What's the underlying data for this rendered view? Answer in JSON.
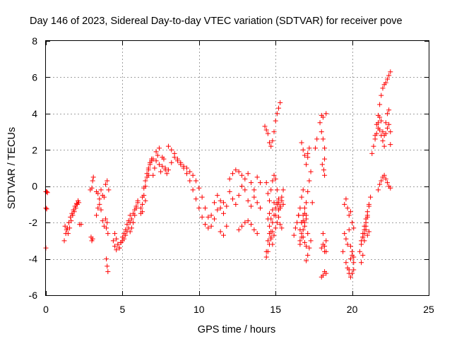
{
  "chart_data": {
    "type": "scatter",
    "title": "Day 146 of 2023, Sidereal Day-to-day VTEC variation (SDTVAR) for receiver pove",
    "xlabel": "GPS time / hours",
    "ylabel": "SDTVAR / TECUs",
    "xlim": [
      0,
      25
    ],
    "ylim": [
      -6,
      8
    ],
    "xticks": [
      0,
      5,
      10,
      15,
      20,
      25
    ],
    "yticks": [
      -6,
      -4,
      -2,
      0,
      2,
      4,
      6,
      8
    ],
    "xtick_labels": [
      "0",
      "5",
      "10",
      "15",
      "20",
      "25"
    ],
    "ytick_labels": [
      "-6",
      "-4",
      "-2",
      "0",
      "2",
      "4",
      "6",
      "8"
    ],
    "grid": true,
    "marker": "+",
    "series_color": "#ff0000",
    "series": [
      {
        "name": "SDTVAR",
        "x": [
          0.0,
          0.05,
          0.1,
          0.0,
          0.05,
          0.0,
          1.2,
          1.3,
          1.4,
          1.5,
          1.6,
          1.7,
          1.8,
          1.9,
          2.0,
          2.1,
          2.2,
          1.25,
          1.35,
          1.45,
          1.55,
          1.65,
          1.75,
          1.85,
          1.95,
          2.05,
          2.15,
          2.3,
          2.9,
          3.0,
          3.05,
          3.1,
          2.95,
          3.0,
          3.05,
          3.3,
          3.4,
          3.5,
          3.6,
          3.7,
          3.8,
          3.3,
          3.4,
          3.5,
          3.6,
          3.7,
          3.8,
          3.9,
          3.95,
          4.0,
          4.05,
          3.95,
          4.0,
          4.05,
          3.9,
          4.0,
          4.1,
          4.4,
          4.5,
          4.6,
          4.7,
          4.8,
          4.9,
          5.0,
          5.1,
          5.2,
          5.3,
          5.4,
          5.5,
          4.5,
          4.6,
          4.7,
          4.8,
          4.9,
          5.0,
          5.1,
          5.2,
          5.3,
          5.4,
          5.5,
          5.6,
          5.7,
          5.8,
          5.9,
          6.0,
          5.5,
          5.6,
          5.7,
          5.8,
          5.9,
          6.0,
          6.2,
          6.3,
          6.4,
          6.5,
          6.6,
          6.7,
          6.8,
          6.9,
          6.2,
          6.3,
          6.4,
          6.5,
          6.6,
          6.7,
          6.8,
          6.9,
          6.3,
          6.5,
          6.7,
          7.0,
          7.1,
          7.2,
          7.3,
          7.4,
          7.5,
          7.6,
          7.7,
          7.8,
          7.9,
          7.0,
          7.2,
          7.4,
          7.6,
          7.8,
          8.0,
          8.2,
          8.4,
          8.6,
          8.8,
          9.0,
          9.2,
          9.4,
          9.6,
          9.8,
          10.0,
          10.2,
          10.4,
          10.6,
          8.0,
          8.2,
          8.4,
          8.6,
          8.8,
          9.0,
          9.2,
          9.4,
          9.6,
          9.8,
          10.0,
          10.2,
          10.4,
          10.6,
          10.8,
          11.0,
          11.2,
          11.4,
          11.6,
          11.8,
          10.8,
          11.0,
          11.2,
          11.4,
          11.6,
          12.0,
          12.2,
          12.4,
          12.6,
          12.8,
          13.0,
          13.2,
          13.4,
          13.6,
          13.8,
          14.0,
          12.0,
          12.2,
          12.4,
          12.6,
          12.8,
          13.0,
          13.2,
          13.4,
          13.6,
          13.8,
          14.0,
          12.6,
          12.8,
          13.0,
          13.2,
          13.4,
          13.6,
          13.8,
          11.4,
          11.6,
          11.8,
          14.3,
          14.4,
          14.5,
          14.6,
          14.7,
          14.8,
          14.9,
          15.0,
          15.1,
          15.2,
          15.3,
          14.4,
          14.5,
          14.6,
          14.7,
          14.8,
          14.9,
          15.0,
          15.1,
          15.2,
          15.3,
          14.6,
          14.7,
          14.8,
          14.9,
          15.0,
          15.1,
          15.2,
          15.3,
          15.4,
          15.5,
          14.5,
          14.6,
          14.7,
          14.8,
          14.9,
          15.0,
          15.1,
          15.2,
          15.3,
          15.4,
          15.5,
          14.4,
          14.5,
          14.6,
          14.7,
          14.8,
          14.9,
          15.0,
          15.1,
          15.2,
          15.3,
          15.4,
          14.4,
          14.5,
          14.6,
          14.7,
          14.8,
          16.2,
          16.3,
          16.4,
          16.5,
          16.6,
          16.7,
          16.8,
          16.9,
          17.0,
          17.1,
          16.5,
          16.6,
          16.7,
          16.8,
          16.9,
          17.0,
          16.6,
          16.7,
          16.8,
          16.9,
          17.0,
          17.1,
          17.2,
          17.3,
          17.4,
          16.7,
          16.8,
          16.9,
          17.0,
          17.1,
          17.2,
          16.7,
          16.8,
          16.9,
          17.0,
          17.1,
          17.2,
          17.3,
          16.6,
          16.7,
          16.8,
          16.9,
          17.0,
          17.1,
          17.6,
          17.7,
          18.0,
          18.1,
          18.2,
          18.05,
          18.15,
          18.2,
          18.3,
          17.9,
          18.0,
          18.1,
          18.2,
          18.3,
          18.0,
          18.1,
          18.2,
          18.3,
          18.0,
          18.1,
          18.2,
          18.3,
          18.1,
          18.2,
          19.4,
          19.5,
          19.6,
          19.7,
          19.8,
          19.9,
          20.0,
          20.1,
          19.5,
          19.6,
          19.7,
          19.8,
          19.9,
          20.0,
          20.1,
          19.6,
          19.7,
          19.8,
          19.9,
          20.0,
          20.1,
          19.8,
          19.9,
          20.0,
          20.1,
          20.6,
          20.7,
          20.8,
          20.9,
          21.0,
          21.1,
          21.2,
          20.5,
          20.6,
          20.7,
          20.8,
          20.9,
          21.0,
          21.1,
          20.7,
          20.8,
          20.9,
          21.0,
          20.6,
          20.7,
          20.8,
          20.9,
          21.0,
          21.1,
          21.3,
          21.4,
          21.5,
          21.6,
          21.7,
          21.8,
          21.9,
          22.0,
          22.1,
          22.2,
          22.3,
          22.4,
          22.5,
          21.5,
          21.6,
          21.7,
          21.8,
          21.9,
          22.0,
          22.1,
          22.2,
          22.3,
          22.4,
          22.5,
          21.7,
          21.8,
          21.9,
          22.0,
          22.1,
          22.2,
          22.3,
          22.4,
          22.5,
          21.7,
          21.8,
          21.9,
          22.0,
          22.1,
          22.2,
          22.3,
          22.4,
          22.5
        ],
        "y": [
          -0.3,
          -0.3,
          -0.35,
          -1.2,
          -1.25,
          -3.4,
          -3.0,
          -2.6,
          -2.3,
          -2.0,
          -1.7,
          -1.5,
          -1.3,
          -1.1,
          -0.95,
          -0.8,
          -2.1,
          -2.2,
          -2.4,
          -2.6,
          -2.3,
          -1.9,
          -1.6,
          -1.4,
          -1.2,
          -1.0,
          -0.9,
          -2.1,
          -0.2,
          -0.1,
          0.3,
          0.5,
          -2.8,
          -3.0,
          -2.9,
          -0.3,
          -0.4,
          -0.7,
          -0.2,
          -0.5,
          -0.6,
          -1.6,
          -1.2,
          -1.0,
          -1.3,
          -1.9,
          -2.2,
          -1.8,
          -4.0,
          -4.4,
          -4.7,
          -2.3,
          -2.0,
          -2.6,
          0.1,
          0.3,
          -0.2,
          -3.0,
          -3.3,
          -3.5,
          -3.2,
          -3.4,
          -3.1,
          -2.8,
          -2.6,
          -2.4,
          -2.1,
          -1.9,
          -1.6,
          -2.6,
          -2.9,
          -3.2,
          -3.4,
          -3.1,
          -3.0,
          -2.9,
          -2.7,
          -2.5,
          -2.3,
          -2.0,
          -1.8,
          -1.5,
          -1.3,
          -1.1,
          -0.9,
          -2.5,
          -2.3,
          -2.0,
          -1.6,
          -1.2,
          -0.8,
          -1.5,
          -1.0,
          -0.5,
          0.0,
          0.5,
          0.9,
          1.2,
          1.4,
          -1.2,
          -0.6,
          -0.1,
          0.3,
          0.7,
          1.0,
          1.3,
          1.5,
          -1.4,
          -0.8,
          0.6,
          0.6,
          1.0,
          1.4,
          1.7,
          1.2,
          0.8,
          1.1,
          1.5,
          0.9,
          0.7,
          1.5,
          1.9,
          2.1,
          1.6,
          1.0,
          0.9,
          1.3,
          1.6,
          1.4,
          1.3,
          1.1,
          1.0,
          0.8,
          0.6,
          0.3,
          -0.1,
          -0.6,
          -1.2,
          -1.7,
          2.2,
          2.0,
          1.8,
          1.5,
          1.2,
          1.0,
          0.7,
          0.3,
          -0.2,
          -0.7,
          -1.2,
          -1.7,
          -2.1,
          -2.3,
          -2.2,
          -1.8,
          -1.3,
          -0.8,
          -0.9,
          -1.1,
          -1.6,
          -0.9,
          -0.5,
          -1.2,
          -1.5,
          0.4,
          0.7,
          0.9,
          0.8,
          0.6,
          0.4,
          0.7,
          0.2,
          -0.2,
          0.5,
          0.2,
          -0.3,
          -0.7,
          -1.0,
          -0.5,
          0.0,
          -0.2,
          -0.8,
          -1.1,
          -0.6,
          -0.9,
          -1.2,
          -2.4,
          -2.2,
          -2.0,
          -1.9,
          -2.1,
          -2.4,
          -2.6,
          -2.5,
          -2.7,
          -2.2,
          3.3,
          3.1,
          2.9,
          2.4,
          2.2,
          2.5,
          3.0,
          3.6,
          4.0,
          4.3,
          4.6,
          0.2,
          -0.4,
          -0.8,
          -0.2,
          0.3,
          0.6,
          0.4,
          -0.2,
          -0.9,
          -1.1,
          -1.5,
          -1.8,
          -1.3,
          -0.9,
          -1.6,
          -1.0,
          -0.7,
          -1.2,
          -0.6,
          -0.2,
          -1.8,
          -2.2,
          -2.5,
          -2.0,
          -1.6,
          -1.2,
          -0.9,
          -1.3,
          -1.1,
          -0.8,
          -1.0,
          -3.6,
          -3.0,
          -2.6,
          -2.9,
          -3.2,
          -2.7,
          -2.3,
          -2.0,
          -1.7,
          -2.1,
          -2.3,
          -3.9,
          -3.6,
          -3.2,
          -2.8,
          -2.5,
          -2.7,
          -2.3,
          -2.0,
          -1.6,
          -1.2,
          -2.0,
          -1.6,
          -2.2,
          -1.8,
          -2.6,
          -1.6,
          -2.4,
          -2.0,
          -2.8,
          -3.1,
          -3.3,
          -3.0,
          -2.6,
          -1.9,
          -1.5,
          -0.9,
          -0.3,
          0.3,
          0.8,
          -0.9,
          -0.6,
          -0.2,
          -1.2,
          1.2,
          1.6,
          2.1,
          2.4,
          2.0,
          1.7,
          -4.1,
          -3.8,
          -3.4,
          -3.0,
          -3.2,
          -2.8,
          -2.4,
          -2.0,
          -1.6,
          1.8,
          2.1,
          2.6,
          3.9,
          3.8,
          1.5,
          1.2,
          0.9,
          0.6,
          4.0,
          3.5,
          3.0,
          2.6,
          2.1,
          -4.8,
          -5.0,
          -4.9,
          -4.7,
          -3.6,
          -3.4,
          -3.2,
          -3.6,
          -3.0,
          -2.6,
          -3.3,
          -3.6,
          -1.0,
          -0.7,
          -1.2,
          -1.6,
          -1.4,
          -2.0,
          -2.3,
          -2.6,
          -2.9,
          -3.2,
          -2.4,
          -3.3,
          -3.6,
          -3.9,
          -4.2,
          -4.5,
          -4.8,
          -4.0,
          -3.8,
          -4.2,
          -4.6,
          -5.0,
          -4.8,
          -4.6,
          -4.2,
          -3.8,
          -3.0,
          -2.2,
          -1.6,
          -1.0,
          -0.6,
          -3.6,
          -3.2,
          -2.6,
          -2.2,
          -1.8,
          -1.4,
          -1.1,
          -2.8,
          -2.4,
          -2.0,
          -1.7,
          -3.0,
          -2.8,
          -2.6,
          -2.4,
          -2.7,
          -2.5,
          1.8,
          2.2,
          2.8,
          3.4,
          3.9,
          4.5,
          5.0,
          5.4,
          5.6,
          5.7,
          5.9,
          6.1,
          6.3,
          2.6,
          2.9,
          3.2,
          3.1,
          2.8,
          2.5,
          2.2,
          2.9,
          3.2,
          3.4,
          3.0,
          3.5,
          3.8,
          3.6,
          3.0,
          2.8,
          3.5,
          4.0,
          4.2,
          2.3,
          -0.2,
          0.1,
          0.3,
          0.5,
          0.6,
          0.4,
          0.2,
          0.0,
          -0.1
        ]
      }
    ]
  }
}
